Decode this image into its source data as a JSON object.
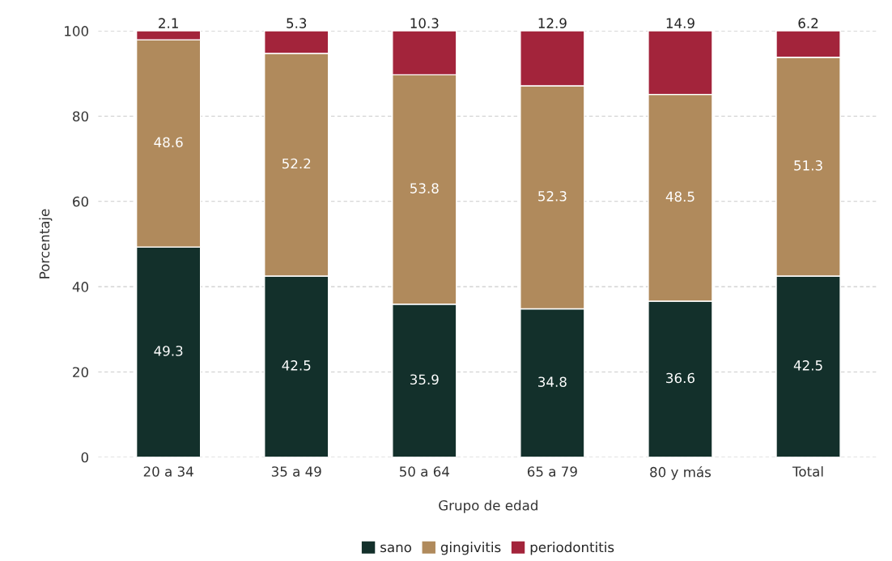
{
  "chart_data": {
    "type": "bar",
    "stacked": true,
    "xlabel": "Grupo de edad",
    "ylabel": "Porcentaje",
    "categories": [
      "20 a 34",
      "35 a 49",
      "50 a 64",
      "65 a 79",
      "80 y más",
      "Total"
    ],
    "series": [
      {
        "name": "sano",
        "color": "#13302b",
        "values": [
          49.3,
          42.5,
          35.9,
          34.8,
          36.6,
          42.5
        ]
      },
      {
        "name": "gingivitis",
        "color": "#b08a5c",
        "values": [
          48.6,
          52.2,
          53.8,
          52.3,
          48.5,
          51.3
        ]
      },
      {
        "name": "periodontitis",
        "color": "#a3243b",
        "values": [
          2.1,
          5.3,
          10.3,
          12.9,
          14.9,
          6.2
        ]
      }
    ],
    "ylim": [
      0,
      100
    ],
    "yticks": [
      0,
      20,
      40,
      60,
      80,
      100
    ],
    "grid": "y",
    "legend": "bottom",
    "data_labels": true
  }
}
